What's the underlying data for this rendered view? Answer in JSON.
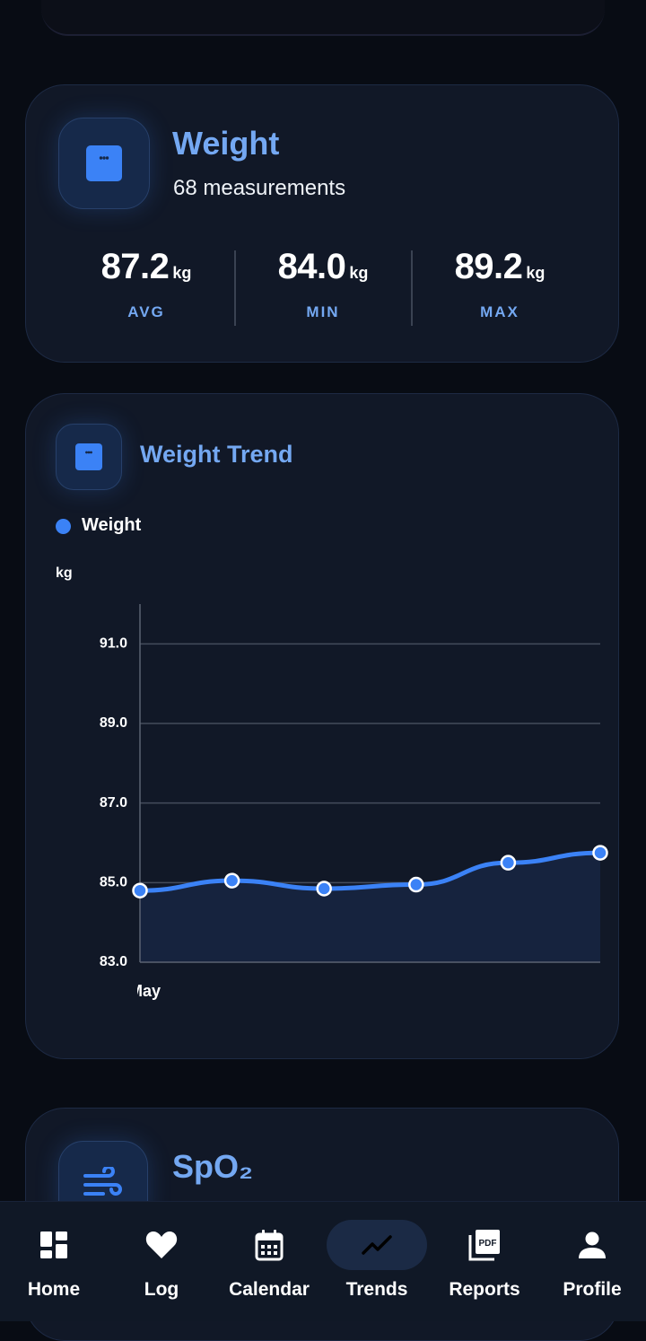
{
  "summary": {
    "title": "Weight",
    "subtitle": "68 measurements",
    "stats": [
      {
        "value": "87.2",
        "unit": "kg",
        "label": "AVG"
      },
      {
        "value": "84.0",
        "unit": "kg",
        "label": "MIN"
      },
      {
        "value": "89.2",
        "unit": "kg",
        "label": "MAX"
      }
    ]
  },
  "trend": {
    "title": "Weight Trend",
    "legend": "Weight",
    "y_unit": "kg",
    "x_tick": "May"
  },
  "chart_data": {
    "type": "area",
    "title": "Weight Trend",
    "ylabel": "kg",
    "ylim": [
      83.0,
      92.0
    ],
    "y_ticks": [
      "91.0",
      "89.0",
      "87.0",
      "85.0",
      "83.0"
    ],
    "x_ticks": [
      "May"
    ],
    "legend": "top-left",
    "grid": true,
    "series": [
      {
        "name": "Weight",
        "values": [
          84.8,
          85.05,
          84.85,
          84.95,
          85.5,
          85.75
        ]
      }
    ]
  },
  "spo2": {
    "title": "SpO₂"
  },
  "nav": {
    "items": [
      {
        "label": "Home",
        "icon": "dashboard-icon"
      },
      {
        "label": "Log",
        "icon": "heart-icon"
      },
      {
        "label": "Calendar",
        "icon": "calendar-icon"
      },
      {
        "label": "Trends",
        "icon": "trend-line-icon",
        "active": true
      },
      {
        "label": "Reports",
        "icon": "pdf-icon"
      },
      {
        "label": "Profile",
        "icon": "person-icon"
      }
    ]
  },
  "colors": {
    "accent": "#3b82f6",
    "title": "#74a8f2",
    "card": "#111827",
    "background": "#080c14"
  }
}
